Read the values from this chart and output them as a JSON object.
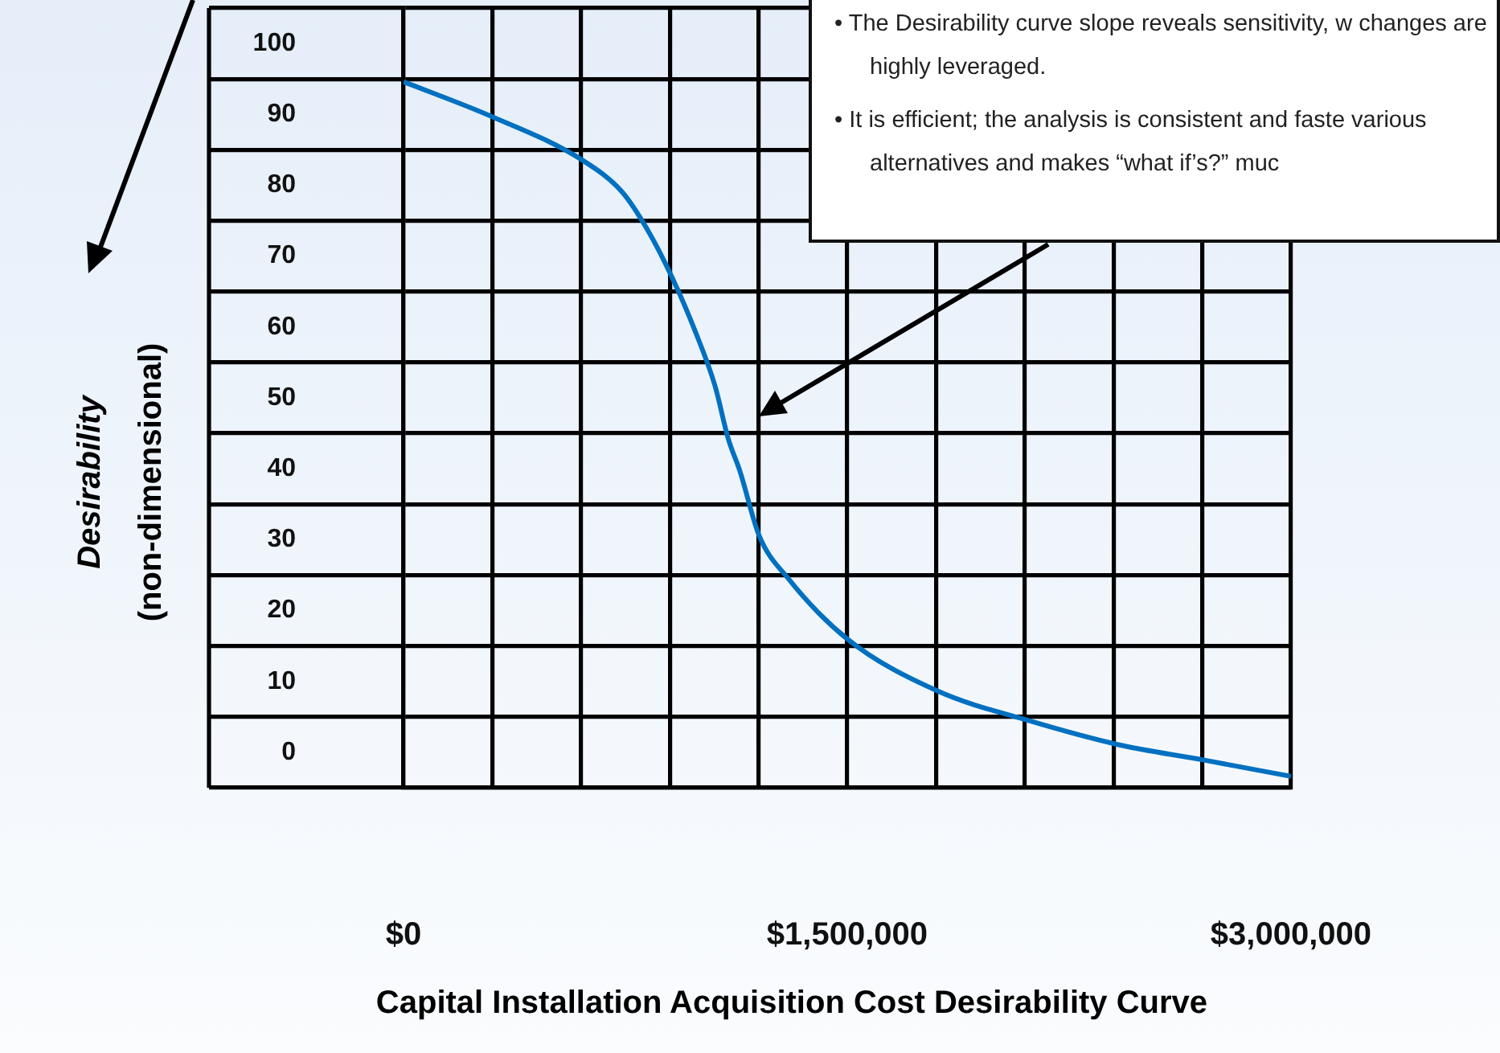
{
  "chart_data": {
    "type": "line",
    "title": "Capital Installation Acquisition Cost Desirability Curve",
    "ylabel": "Desirability\n(non-dimensional)",
    "annotations": [
      "• The Desirability curve slope reveals sensitivity, w changes are highly leveraged.",
      "• It is efficient; the analysis is consistent and faste various alternatives and makes “what if’s?” muc"
    ],
    "x": [
      0,
      303000,
      606000,
      740000,
      825000,
      909000,
      988000,
      1053000,
      1098000,
      1137000,
      1202000,
      1301000,
      1500000,
      1808000,
      2111000,
      2414000,
      2707000,
      3000000
    ],
    "series": [
      {
        "color": "#0070c0",
        "values": [
          94.6,
          89.6,
          83.5,
          79,
          73.7,
          66.9,
          59.2,
          51.7,
          44.2,
          39.7,
          30.6,
          24.5,
          16,
          8.6,
          4.5,
          1.1,
          -1.1,
          -3.4
        ]
      }
    ],
    "xlim": [
      0,
      3000000
    ],
    "xticks": [
      {
        "value": 0,
        "label": "$0"
      },
      {
        "value": 300000,
        "label": null
      },
      {
        "value": 600000,
        "label": null
      },
      {
        "value": 900000,
        "label": null
      },
      {
        "value": 1200000,
        "label": null
      },
      {
        "value": 1500000,
        "label": "$1,500,000"
      },
      {
        "value": 1800000,
        "label": null
      },
      {
        "value": 2100000,
        "label": null
      },
      {
        "value": 2400000,
        "label": null
      },
      {
        "value": 2700000,
        "label": null
      },
      {
        "value": 3000000,
        "label": "$3,000,000"
      }
    ],
    "ylim": [
      -5,
      105
    ],
    "yticks": [
      {
        "value": -5,
        "label": null
      },
      0,
      {
        "value": 5,
        "label": null
      },
      10,
      {
        "value": 15,
        "label": null
      },
      20,
      {
        "value": 25,
        "label": null
      },
      30,
      {
        "value": 35,
        "label": null
      },
      40,
      {
        "value": 45,
        "label": null
      },
      50,
      {
        "value": 55,
        "label": null
      },
      60,
      {
        "value": 65,
        "label": null
      },
      70,
      {
        "value": 75,
        "label": null
      },
      80,
      {
        "value": 85,
        "label": null
      },
      90,
      {
        "value": 95,
        "label": null
      },
      100,
      {
        "value": 105,
        "label": null
      }
    ],
    "grid": true,
    "marker": "none",
    "line_style": "solid"
  }
}
